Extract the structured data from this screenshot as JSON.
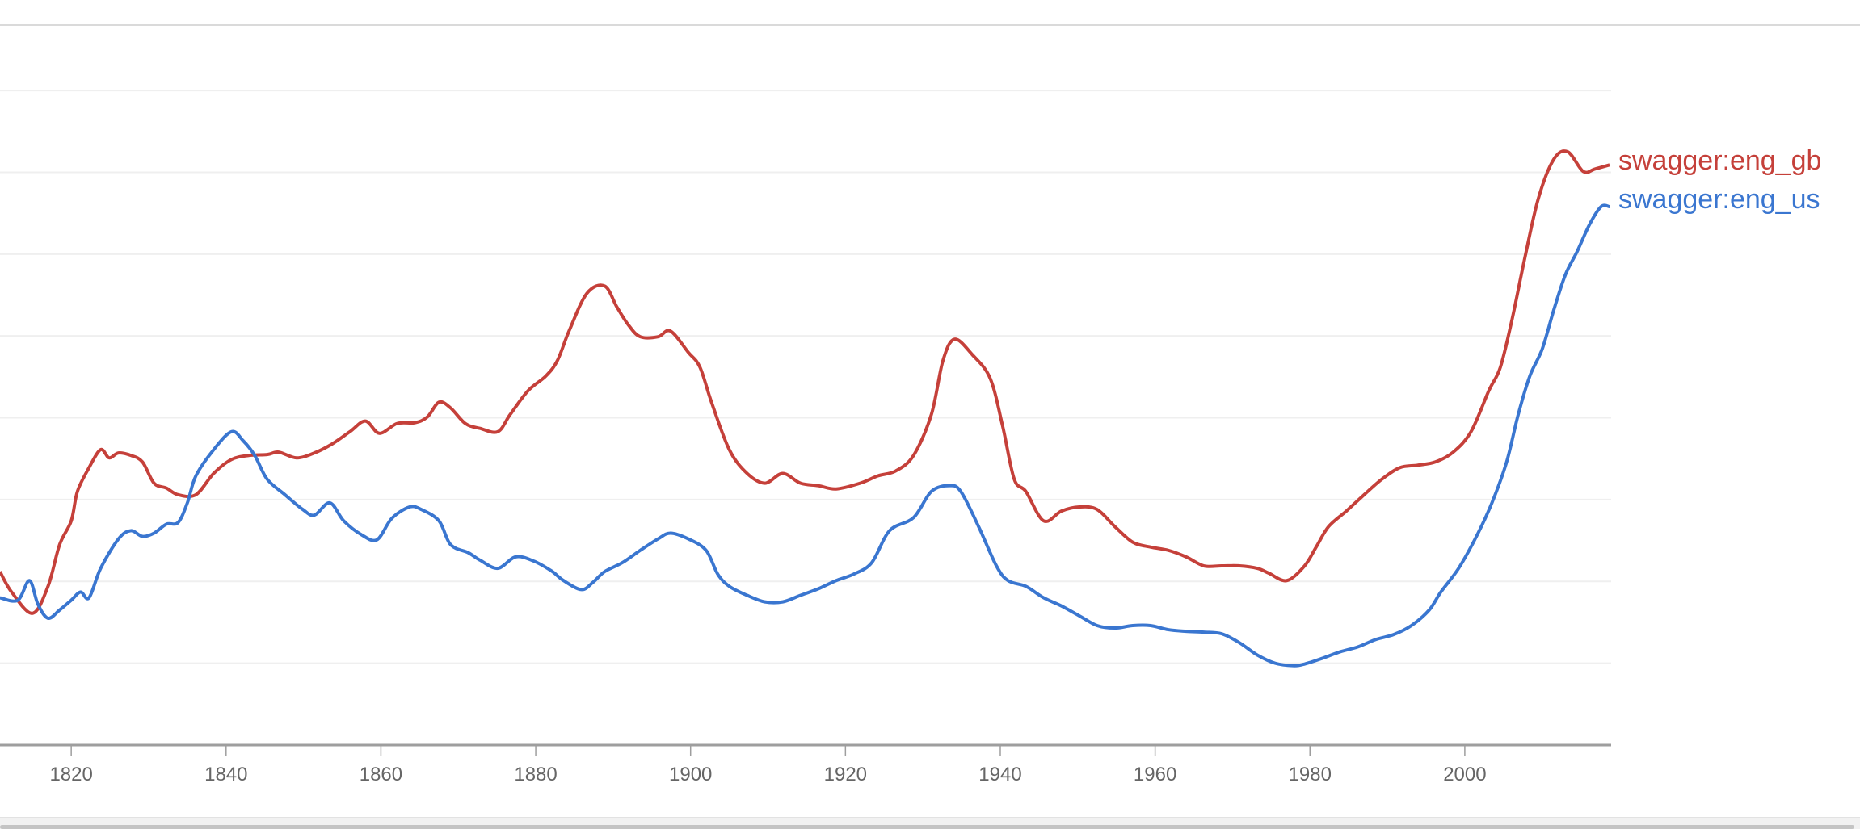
{
  "chart_data": {
    "type": "line",
    "title": "",
    "xlabel": "",
    "ylabel": "",
    "xlim": [
      1810.8,
      2018.9
    ],
    "ylim": [
      0,
      8.8
    ],
    "x_ticks": [
      1820,
      1840,
      1860,
      1880,
      1900,
      1920,
      1940,
      1960,
      1980,
      2000
    ],
    "y_gridlines": [
      1,
      2,
      3,
      4,
      5,
      6,
      7,
      8
    ],
    "grid": true,
    "legend": "inline labels at right end of lines",
    "series": [
      {
        "name": "swagger:eng_gb",
        "color": "#c5403a",
        "points": [
          [
            1810.8,
            2.12
          ],
          [
            1812.3,
            1.87
          ],
          [
            1815,
            1.61
          ],
          [
            1817,
            1.94
          ],
          [
            1818.5,
            2.45
          ],
          [
            1820,
            2.74
          ],
          [
            1820.8,
            3.1
          ],
          [
            1822.3,
            3.39
          ],
          [
            1823.8,
            3.61
          ],
          [
            1824.9,
            3.51
          ],
          [
            1826.1,
            3.57
          ],
          [
            1827.7,
            3.54
          ],
          [
            1829.2,
            3.46
          ],
          [
            1830.7,
            3.2
          ],
          [
            1832.3,
            3.14
          ],
          [
            1833.8,
            3.06
          ],
          [
            1836.1,
            3.06
          ],
          [
            1838.4,
            3.32
          ],
          [
            1840.7,
            3.49
          ],
          [
            1843,
            3.54
          ],
          [
            1845.3,
            3.55
          ],
          [
            1846.8,
            3.58
          ],
          [
            1849.1,
            3.51
          ],
          [
            1851.4,
            3.57
          ],
          [
            1853.7,
            3.68
          ],
          [
            1856,
            3.83
          ],
          [
            1858,
            3.96
          ],
          [
            1859.8,
            3.81
          ],
          [
            1862.1,
            3.93
          ],
          [
            1864.4,
            3.94
          ],
          [
            1866,
            4.01
          ],
          [
            1867.5,
            4.19
          ],
          [
            1869,
            4.12
          ],
          [
            1870.9,
            3.93
          ],
          [
            1872.8,
            3.87
          ],
          [
            1875.1,
            3.83
          ],
          [
            1876.7,
            4.04
          ],
          [
            1879,
            4.33
          ],
          [
            1881.3,
            4.51
          ],
          [
            1882.8,
            4.7
          ],
          [
            1884.3,
            5.06
          ],
          [
            1886.6,
            5.52
          ],
          [
            1888.9,
            5.61
          ],
          [
            1890.5,
            5.35
          ],
          [
            1892,
            5.13
          ],
          [
            1893.5,
            4.99
          ],
          [
            1895.8,
            4.99
          ],
          [
            1897.4,
            5.06
          ],
          [
            1899.7,
            4.8
          ],
          [
            1901.2,
            4.62
          ],
          [
            1902.7,
            4.19
          ],
          [
            1905,
            3.61
          ],
          [
            1907.3,
            3.32
          ],
          [
            1909.6,
            3.2
          ],
          [
            1911.9,
            3.32
          ],
          [
            1914.2,
            3.2
          ],
          [
            1916.5,
            3.17
          ],
          [
            1918.8,
            3.13
          ],
          [
            1921.9,
            3.2
          ],
          [
            1924.2,
            3.29
          ],
          [
            1926.5,
            3.35
          ],
          [
            1928.8,
            3.54
          ],
          [
            1931.1,
            4.04
          ],
          [
            1932.6,
            4.7
          ],
          [
            1934.1,
            4.96
          ],
          [
            1936.4,
            4.77
          ],
          [
            1938.7,
            4.48
          ],
          [
            1940.3,
            3.9
          ],
          [
            1941.8,
            3.25
          ],
          [
            1943.3,
            3.1
          ],
          [
            1945.6,
            2.74
          ],
          [
            1947.9,
            2.86
          ],
          [
            1950.2,
            2.91
          ],
          [
            1952.5,
            2.88
          ],
          [
            1954.8,
            2.67
          ],
          [
            1957.1,
            2.48
          ],
          [
            1959.4,
            2.42
          ],
          [
            1961.7,
            2.38
          ],
          [
            1964,
            2.3
          ],
          [
            1966.3,
            2.19
          ],
          [
            1968.6,
            2.19
          ],
          [
            1970.9,
            2.19
          ],
          [
            1973.2,
            2.16
          ],
          [
            1974.7,
            2.1
          ],
          [
            1977,
            2.01
          ],
          [
            1979.3,
            2.19
          ],
          [
            1980.8,
            2.42
          ],
          [
            1982.4,
            2.67
          ],
          [
            1984.7,
            2.86
          ],
          [
            1987,
            3.06
          ],
          [
            1989.3,
            3.25
          ],
          [
            1991.6,
            3.39
          ],
          [
            1993.9,
            3.42
          ],
          [
            1996.2,
            3.46
          ],
          [
            1998.5,
            3.58
          ],
          [
            2000.8,
            3.83
          ],
          [
            2003.1,
            4.33
          ],
          [
            2004.6,
            4.62
          ],
          [
            2006.1,
            5.2
          ],
          [
            2007.7,
            5.93
          ],
          [
            2009.5,
            6.68
          ],
          [
            2011.5,
            7.16
          ],
          [
            2013.3,
            7.25
          ],
          [
            2015.3,
            7.01
          ],
          [
            2016.8,
            7.04
          ],
          [
            2018.7,
            7.09
          ]
        ]
      },
      {
        "name": "swagger:eng_us",
        "color": "#3a76d0",
        "points": [
          [
            1810.8,
            1.8
          ],
          [
            1813.1,
            1.77
          ],
          [
            1814.6,
            2.01
          ],
          [
            1815.7,
            1.72
          ],
          [
            1817,
            1.55
          ],
          [
            1818.5,
            1.65
          ],
          [
            1820,
            1.77
          ],
          [
            1821.2,
            1.87
          ],
          [
            1822.3,
            1.8
          ],
          [
            1823.8,
            2.16
          ],
          [
            1826.1,
            2.52
          ],
          [
            1827.7,
            2.62
          ],
          [
            1829.2,
            2.55
          ],
          [
            1830.7,
            2.59
          ],
          [
            1832.3,
            2.7
          ],
          [
            1833.8,
            2.72
          ],
          [
            1835,
            2.96
          ],
          [
            1836.1,
            3.29
          ],
          [
            1838.4,
            3.61
          ],
          [
            1840.7,
            3.83
          ],
          [
            1842.2,
            3.72
          ],
          [
            1843.7,
            3.54
          ],
          [
            1845.3,
            3.25
          ],
          [
            1847.6,
            3.06
          ],
          [
            1849.9,
            2.88
          ],
          [
            1851.4,
            2.81
          ],
          [
            1853.4,
            2.96
          ],
          [
            1855.2,
            2.74
          ],
          [
            1857.5,
            2.57
          ],
          [
            1859.5,
            2.51
          ],
          [
            1861.4,
            2.77
          ],
          [
            1863.7,
            2.91
          ],
          [
            1865.2,
            2.88
          ],
          [
            1867.5,
            2.74
          ],
          [
            1869,
            2.45
          ],
          [
            1871.3,
            2.35
          ],
          [
            1872.8,
            2.26
          ],
          [
            1875.1,
            2.16
          ],
          [
            1877.4,
            2.3
          ],
          [
            1879.7,
            2.25
          ],
          [
            1882,
            2.13
          ],
          [
            1883.6,
            2.01
          ],
          [
            1885.9,
            1.9
          ],
          [
            1887.4,
            1.99
          ],
          [
            1888.9,
            2.12
          ],
          [
            1891.2,
            2.23
          ],
          [
            1893.5,
            2.38
          ],
          [
            1895.8,
            2.52
          ],
          [
            1897.4,
            2.59
          ],
          [
            1899.7,
            2.52
          ],
          [
            1902,
            2.38
          ],
          [
            1903.5,
            2.09
          ],
          [
            1905,
            1.94
          ],
          [
            1907.3,
            1.83
          ],
          [
            1909.6,
            1.75
          ],
          [
            1911.9,
            1.75
          ],
          [
            1914.2,
            1.83
          ],
          [
            1916.5,
            1.91
          ],
          [
            1918.8,
            2.01
          ],
          [
            1921.1,
            2.09
          ],
          [
            1923.4,
            2.23
          ],
          [
            1925.7,
            2.62
          ],
          [
            1928.8,
            2.78
          ],
          [
            1931.1,
            3.1
          ],
          [
            1933.4,
            3.17
          ],
          [
            1934.9,
            3.1
          ],
          [
            1937.2,
            2.67
          ],
          [
            1939.5,
            2.19
          ],
          [
            1941,
            2.01
          ],
          [
            1943.3,
            1.94
          ],
          [
            1945.6,
            1.8
          ],
          [
            1947.9,
            1.7
          ],
          [
            1950.2,
            1.58
          ],
          [
            1952.5,
            1.46
          ],
          [
            1954.8,
            1.43
          ],
          [
            1957.1,
            1.46
          ],
          [
            1959.4,
            1.46
          ],
          [
            1961.7,
            1.41
          ],
          [
            1964,
            1.39
          ],
          [
            1966.3,
            1.38
          ],
          [
            1968.6,
            1.36
          ],
          [
            1970.9,
            1.25
          ],
          [
            1973.2,
            1.1
          ],
          [
            1975.5,
            1.0
          ],
          [
            1977.8,
            0.97
          ],
          [
            1979.3,
            0.99
          ],
          [
            1981.6,
            1.06
          ],
          [
            1983.9,
            1.14
          ],
          [
            1986.2,
            1.2
          ],
          [
            1988.5,
            1.29
          ],
          [
            1990.8,
            1.35
          ],
          [
            1993.1,
            1.46
          ],
          [
            1995.4,
            1.65
          ],
          [
            1996.9,
            1.87
          ],
          [
            1999.2,
            2.16
          ],
          [
            2001.5,
            2.55
          ],
          [
            2003.5,
            2.96
          ],
          [
            2005.4,
            3.46
          ],
          [
            2006.9,
            4.04
          ],
          [
            2008.4,
            4.51
          ],
          [
            2010,
            4.84
          ],
          [
            2011.5,
            5.32
          ],
          [
            2013,
            5.75
          ],
          [
            2014.5,
            6.03
          ],
          [
            2016.1,
            6.36
          ],
          [
            2017.6,
            6.58
          ],
          [
            2018.7,
            6.58
          ]
        ]
      }
    ]
  }
}
